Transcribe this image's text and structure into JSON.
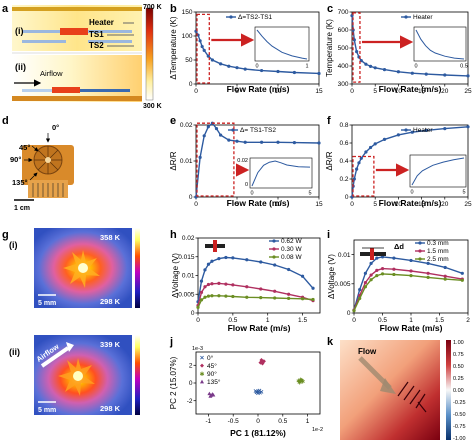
{
  "figure": {
    "panel_letters": [
      "a",
      "b",
      "c",
      "d",
      "e",
      "f",
      "g",
      "h",
      "i",
      "j",
      "k"
    ],
    "sim_a": {
      "labels": {
        "i": "(i)",
        "ii": "(ii)",
        "heater": "Heater",
        "ts1": "TS1",
        "ts2": "TS2",
        "airflow": "Airflow"
      },
      "colorbar": {
        "max_label": "700 K",
        "min_label": "300 K"
      }
    },
    "photo_d": {
      "angles": [
        "45°",
        "0°",
        "90°",
        "135°"
      ],
      "scale": "1 cm"
    },
    "thermal_g": {
      "i": {
        "tag": "(i)",
        "max_label": "358 K",
        "min_label": "298 K",
        "scale": "5 mm"
      },
      "ii": {
        "tag": "(ii)",
        "max_label": "339 K",
        "min_label": "298 K",
        "scale": "5 mm",
        "airflow": "Airflow"
      }
    },
    "heatmap_k": {
      "flow_label": "Flow",
      "ticks": [
        "1.00",
        "0.75",
        "0.50",
        "0.25",
        "0.00",
        "-0.25",
        "-0.50",
        "-0.75",
        "-1.00"
      ]
    },
    "colors": {
      "line_blue": "#2d5aa0",
      "dash_red": "#cc2222",
      "inset_blue": "#2d5aa0",
      "red": "#c0392b",
      "green": "#6b8e23"
    }
  },
  "chart_data": [
    {
      "id": "b",
      "type": "line",
      "xlabel": "Flow Rate (m/s)",
      "ylabel": "ΔTemperature (K)",
      "xlim": [
        0,
        15
      ],
      "ylim": [
        0,
        150
      ],
      "xticks": [
        0,
        5,
        10,
        15
      ],
      "yticks": [
        0,
        50,
        100,
        150
      ],
      "series": [
        {
          "name": "Δ=TS2-TS1",
          "x": [
            0,
            0.25,
            0.5,
            0.75,
            1,
            1.5,
            2,
            3,
            4,
            5,
            6,
            8,
            10,
            12,
            15
          ],
          "y": [
            110,
            102,
            90,
            78,
            70,
            58,
            50,
            42,
            37,
            34,
            31,
            28,
            26,
            24,
            22
          ]
        }
      ],
      "inset": {
        "xticks": [
          0.0,
          1.0
        ],
        "x": [
          0,
          0.1,
          0.2,
          0.3,
          0.5,
          0.7,
          0.9,
          1.0
        ],
        "y": [
          1.0,
          0.86,
          0.74,
          0.64,
          0.5,
          0.42,
          0.37,
          0.35
        ]
      }
    },
    {
      "id": "c",
      "type": "line",
      "xlabel": "Flow Rate (m/s)",
      "ylabel": "Temperature (K)",
      "xlim": [
        0,
        25
      ],
      "ylim": [
        300,
        700
      ],
      "xticks": [
        0,
        5,
        10,
        15,
        20,
        25
      ],
      "yticks": [
        300,
        400,
        500,
        600,
        700
      ],
      "series": [
        {
          "name": "Heater",
          "x": [
            0,
            0.25,
            0.5,
            1,
            1.5,
            2,
            3,
            4,
            5,
            7,
            10,
            13,
            16,
            20,
            25
          ],
          "y": [
            680,
            600,
            545,
            480,
            450,
            430,
            410,
            398,
            390,
            380,
            368,
            360,
            355,
            350,
            345
          ]
        }
      ],
      "inset": {
        "xticks": [
          0.0,
          0.5
        ],
        "x": [
          0,
          0.05,
          0.1,
          0.15,
          0.2,
          0.3,
          0.4,
          0.5
        ],
        "y": [
          1.0,
          0.8,
          0.66,
          0.56,
          0.5,
          0.43,
          0.39,
          0.37
        ]
      }
    },
    {
      "id": "e",
      "type": "line",
      "xlabel": "Flow Rate (m/s)",
      "ylabel": "ΔR/R",
      "xlim": [
        0,
        15
      ],
      "ylim": [
        0,
        0.02
      ],
      "xticks": [
        0,
        5,
        10,
        15
      ],
      "yticks": [
        0.0,
        0.01,
        0.02
      ],
      "series": [
        {
          "name": "Δ= TS1-TS2",
          "x": [
            0,
            0.5,
            1,
            1.5,
            2,
            2.5,
            3,
            4,
            5,
            6,
            8,
            10,
            12,
            15
          ],
          "y": [
            0.0,
            0.011,
            0.017,
            0.0195,
            0.0205,
            0.019,
            0.0172,
            0.0158,
            0.0155,
            0.0152,
            0.0152,
            0.0152,
            0.0151,
            0.015
          ]
        }
      ],
      "inset": {
        "xticks": [
          0,
          5
        ],
        "yticks": [
          0.0,
          0.02
        ],
        "x": [
          0,
          0.5,
          1,
          1.5,
          2,
          2.5,
          3,
          4,
          5
        ],
        "y": [
          0.0,
          0.011,
          0.017,
          0.0195,
          0.0205,
          0.019,
          0.0172,
          0.0158,
          0.0155
        ]
      }
    },
    {
      "id": "f",
      "type": "line",
      "xlabel": "Flow Rate (m/s)",
      "ylabel": "ΔR/R",
      "xlim": [
        0,
        25
      ],
      "ylim": [
        0,
        0.8
      ],
      "xticks": [
        0,
        5,
        10,
        15,
        20,
        25
      ],
      "yticks": [
        0.0,
        0.2,
        0.4,
        0.6,
        0.8
      ],
      "series": [
        {
          "name": "Heater",
          "x": [
            0,
            0.25,
            0.5,
            1,
            1.5,
            2,
            3,
            4,
            5,
            7,
            10,
            13,
            16,
            20,
            25
          ],
          "y": [
            0.0,
            0.12,
            0.2,
            0.31,
            0.38,
            0.43,
            0.5,
            0.55,
            0.59,
            0.64,
            0.69,
            0.72,
            0.74,
            0.76,
            0.78
          ]
        }
      ],
      "inset": {
        "xticks": [
          0,
          5
        ],
        "x": [
          0,
          0.5,
          1,
          2,
          3,
          4,
          5
        ],
        "y": [
          0.0,
          0.2,
          0.31,
          0.43,
          0.5,
          0.55,
          0.59
        ]
      }
    },
    {
      "id": "h",
      "type": "line",
      "xlabel": "Flow Rate (m/s)",
      "ylabel": "ΔVoltage (V)",
      "xlim": [
        0,
        1.75
      ],
      "ylim": [
        0,
        0.02
      ],
      "xticks": [
        0.0,
        0.5,
        1.0,
        1.5
      ],
      "yticks": [
        0.0,
        0.005,
        0.01,
        0.015,
        0.02
      ],
      "series": [
        {
          "name": "0.62 W",
          "color": "#2d5aa0",
          "x": [
            0,
            0.05,
            0.1,
            0.15,
            0.2,
            0.3,
            0.4,
            0.5,
            0.7,
            0.9,
            1.1,
            1.3,
            1.5,
            1.65
          ],
          "y": [
            0.003,
            0.0085,
            0.0115,
            0.013,
            0.0138,
            0.0145,
            0.0148,
            0.0147,
            0.0142,
            0.0136,
            0.0128,
            0.0116,
            0.0098,
            0.0066
          ]
        },
        {
          "name": "0.30 W",
          "color": "#b03060",
          "x": [
            0,
            0.05,
            0.1,
            0.15,
            0.2,
            0.3,
            0.4,
            0.5,
            0.7,
            0.9,
            1.1,
            1.3,
            1.5,
            1.65
          ],
          "y": [
            0.002,
            0.0055,
            0.007,
            0.0076,
            0.0078,
            0.0079,
            0.0077,
            0.0075,
            0.007,
            0.0064,
            0.0058,
            0.005,
            0.0042,
            0.0033
          ]
        },
        {
          "name": "0.08 W",
          "color": "#6b8e23",
          "x": [
            0,
            0.05,
            0.1,
            0.15,
            0.2,
            0.3,
            0.4,
            0.5,
            0.7,
            0.9,
            1.1,
            1.3,
            1.5,
            1.65
          ],
          "y": [
            0.0015,
            0.0035,
            0.0042,
            0.0045,
            0.0046,
            0.0046,
            0.0045,
            0.0044,
            0.0042,
            0.0041,
            0.004,
            0.0039,
            0.0038,
            0.0036
          ]
        }
      ]
    },
    {
      "id": "i",
      "type": "line",
      "xlabel": "Flow Rate (m/s)",
      "ylabel": "ΔVoltage (V)",
      "xlim": [
        0,
        2.0
      ],
      "ylim": [
        0,
        0.0125
      ],
      "xticks": [
        0.0,
        0.5,
        1.0,
        1.5,
        2.0
      ],
      "yticks": [
        0.0,
        0.005,
        0.01
      ],
      "series": [
        {
          "name": "0.3 mm",
          "color": "#2d5aa0",
          "x": [
            0,
            0.1,
            0.2,
            0.3,
            0.4,
            0.5,
            0.7,
            1.0,
            1.3,
            1.6,
            1.9
          ],
          "y": [
            0.0005,
            0.004,
            0.0068,
            0.0085,
            0.0094,
            0.0096,
            0.0094,
            0.009,
            0.0085,
            0.0078,
            0.0068
          ]
        },
        {
          "name": "1.5 mm",
          "color": "#b03060",
          "x": [
            0,
            0.1,
            0.2,
            0.3,
            0.4,
            0.5,
            0.7,
            1.0,
            1.3,
            1.6,
            1.9
          ],
          "y": [
            0.0005,
            0.003,
            0.0052,
            0.0065,
            0.0073,
            0.0076,
            0.0075,
            0.0072,
            0.0068,
            0.0063,
            0.0058
          ]
        },
        {
          "name": "2.5 mm",
          "color": "#6b8e23",
          "x": [
            0,
            0.1,
            0.2,
            0.3,
            0.4,
            0.5,
            0.7,
            1.0,
            1.3,
            1.6,
            1.9
          ],
          "y": [
            0.0004,
            0.0025,
            0.0045,
            0.0057,
            0.0064,
            0.0067,
            0.0066,
            0.0064,
            0.0061,
            0.0058,
            0.0056
          ]
        }
      ],
      "annotation": "Δd"
    },
    {
      "id": "j",
      "type": "scatter",
      "xlabel": "PC 1 (81.12%)",
      "ylabel": "PC 2 (15.07%)",
      "x_multiplier": "1e-2",
      "y_multiplier": "1e-3",
      "xlim": [
        -1.25,
        1.25
      ],
      "ylim": [
        -3.5,
        3.5
      ],
      "xticks": [
        -1.0,
        -0.5,
        0.0,
        0.5,
        1.0
      ],
      "yticks": [
        -2,
        0,
        2
      ],
      "series": [
        {
          "name": "0°",
          "marker": "x",
          "color": "#2d5aa0",
          "x": [
            -0.05,
            -0.02,
            0.01,
            0.04,
            0.07,
            0.0,
            0.03,
            -0.03
          ],
          "y": [
            -0.9,
            -1.05,
            -0.95,
            -1.1,
            -1.0,
            -1.15,
            -0.85,
            -1.0
          ]
        },
        {
          "name": "45°",
          "marker": "diamond",
          "color": "#b03060",
          "x": [
            0.05,
            0.08,
            0.1,
            0.07,
            0.12,
            0.09
          ],
          "y": [
            2.3,
            2.5,
            2.35,
            2.6,
            2.45,
            2.2
          ]
        },
        {
          "name": "90°",
          "marker": "star",
          "color": "#6b8e23",
          "x": [
            0.82,
            0.86,
            0.9,
            0.84,
            0.88
          ],
          "y": [
            0.2,
            0.35,
            0.15,
            0.05,
            0.28
          ]
        },
        {
          "name": "135°",
          "marker": "triangle",
          "color": "#7a3a8a",
          "x": [
            -0.98,
            -0.95,
            -0.92,
            -0.96,
            -0.9
          ],
          "y": [
            -1.2,
            -1.4,
            -1.25,
            -1.5,
            -1.35
          ]
        }
      ]
    }
  ]
}
